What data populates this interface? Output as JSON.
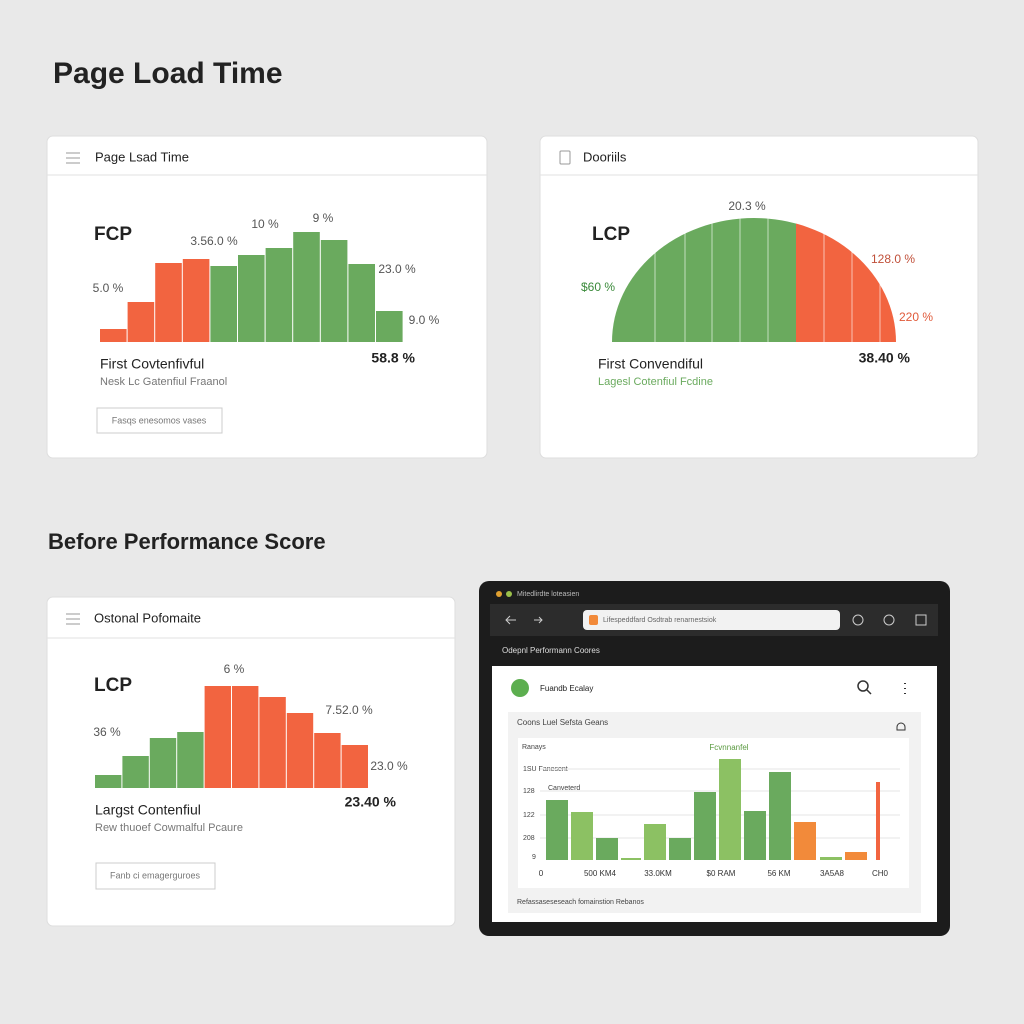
{
  "headings": {
    "page": "Page Load Time",
    "section": "Before Performance Score"
  },
  "cards": [
    {
      "title": "Page Lsad Time",
      "metric": "FCP",
      "label": "First Covtenfivful",
      "sublabel": "Nesk Lc Gatenfiul Fraanol",
      "value": "58.8 %",
      "button": "Fasqs enesomos vases",
      "annotations": [
        "5.0 %",
        "3.56.0 %",
        "10 %",
        "9 %",
        "23.0 %",
        "9.0 %"
      ],
      "bars": [
        13,
        40,
        79,
        83,
        76,
        87,
        94,
        110,
        102,
        78,
        31
      ],
      "colors": [
        "#f26440",
        "#f26440",
        "#f26440",
        "#f26440",
        "#6aaa5e",
        "#6aaa5e",
        "#6aaa5e",
        "#6aaa5e",
        "#6aaa5e",
        "#6aaa5e",
        "#6aaa5e"
      ]
    },
    {
      "title": "Dooriils",
      "metric": "LCP",
      "label": "First Convendiful",
      "sublabel": "Lagesl Cotenfiul Fcdine",
      "value": "38.40 %",
      "annotations": [
        "$60 %",
        "20.3 %",
        "128.0 %",
        "220 %"
      ]
    },
    {
      "title": "Ostonal Pofomaite",
      "metric": "LCP",
      "label": "Largst Contenfiul",
      "sublabel": "Rew thuoef Cowmalful Pcaure",
      "value": "23.40 %",
      "button": "Fanb ci emagerguroes",
      "annotations": [
        "36 %",
        "6 %",
        "7.52.0 %",
        "23.0 %"
      ],
      "bars": [
        13,
        32,
        50,
        56,
        102,
        102,
        91,
        75,
        55,
        43
      ],
      "colors": [
        "#6aaa5e",
        "#6aaa5e",
        "#6aaa5e",
        "#6aaa5e",
        "#f26440",
        "#f26440",
        "#f26440",
        "#f26440",
        "#f26440",
        "#f26440"
      ]
    }
  ],
  "browser": {
    "tab": "Mitedlirdte loteasien",
    "address": "Lifespeddfard Osdtrab renarnestsiok",
    "subtitle": "Odepnl Performann Coores",
    "app_title": "Fuandb Ecalay",
    "panel_title": "Coons Luel Sefsta Geans",
    "chart_title": "Ranays",
    "chart_legend": "Fcvnnanfel",
    "y_labels": [
      "1SU Fanesent",
      "Canveterd",
      "128",
      "122",
      "208",
      "9"
    ],
    "x_labels": [
      "0",
      "500 KM4",
      "33.0KM",
      "$0 RAM",
      "56 KM",
      "3A5A8",
      "CH0"
    ],
    "footer": "Refassaseseseach fomainstion Rebanos",
    "bars": [
      60,
      48,
      22,
      2,
      36,
      22,
      68,
      101,
      49,
      88,
      38,
      3,
      8,
      78
    ],
    "colors": [
      "#6aaa5e",
      "#8cc163",
      "#6aaa5e",
      "#8cc163",
      "#8cc163",
      "#6aaa5e",
      "#6aaa5e",
      "#8cc163",
      "#6aaa5e",
      "#6aaa5e",
      "#f28a3a",
      "#8cc163",
      "#f28a3a",
      "#f26440"
    ]
  }
}
